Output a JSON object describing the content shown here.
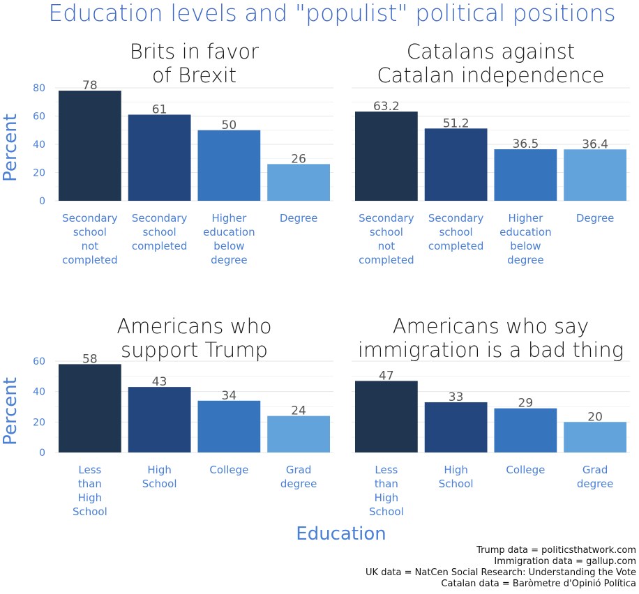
{
  "title": "Education levels and \"populist\" political positions",
  "colors": {
    "title": "#3a66c4",
    "axis_text": "#4a7fd6",
    "value_text": "#555555",
    "grid": "#e6e6e6",
    "bars": [
      "#1f3550",
      "#23467e",
      "#3674be",
      "#63a3dc"
    ]
  },
  "axis": {
    "ylabel": "Percent",
    "xlabel": "Education"
  },
  "chart_data": [
    {
      "type": "bar",
      "title": [
        "Brits in favor",
        "of Brexit"
      ],
      "categories": [
        [
          "Secondary",
          "school",
          "not",
          "completed"
        ],
        [
          "Secondary",
          "school",
          "completed"
        ],
        [
          "Higher",
          "education",
          "below",
          "degree"
        ],
        [
          "Degree"
        ]
      ],
      "values": [
        78,
        61,
        50,
        26
      ],
      "value_labels": [
        "78",
        "61",
        "50",
        "26"
      ],
      "ylim": [
        0,
        80
      ],
      "yticks": [
        0,
        20,
        40,
        60,
        80
      ],
      "ylabel": "Percent"
    },
    {
      "type": "bar",
      "title": [
        "Catalans against",
        "Catalan independence"
      ],
      "categories": [
        [
          "Secondary",
          "school",
          "not",
          "completed"
        ],
        [
          "Secondary",
          "school",
          "completed"
        ],
        [
          "Higher",
          "education",
          "below",
          "degree"
        ],
        [
          "Degree"
        ]
      ],
      "values": [
        63.2,
        51.2,
        36.5,
        36.4
      ],
      "value_labels": [
        "63.2",
        "51.2",
        "36.5",
        "36.4"
      ],
      "ylim": [
        0,
        80
      ],
      "yticks": [
        0,
        20,
        40,
        60,
        80
      ],
      "ylabel": "Percent"
    },
    {
      "type": "bar",
      "title": [
        "Americans who",
        "support Trump"
      ],
      "categories": [
        [
          "Less",
          "than",
          "High",
          "School"
        ],
        [
          "High",
          "School"
        ],
        [
          "College"
        ],
        [
          "Grad",
          "degree"
        ]
      ],
      "values": [
        58,
        43,
        34,
        24
      ],
      "value_labels": [
        "58",
        "43",
        "34",
        "24"
      ],
      "ylim": [
        0,
        60
      ],
      "yticks": [
        0,
        20,
        40,
        60
      ],
      "ylabel": "Percent",
      "xlabel": "Education"
    },
    {
      "type": "bar",
      "title": [
        "Americans who say",
        "immigration is a bad thing"
      ],
      "categories": [
        [
          "Less",
          "than",
          "High",
          "School"
        ],
        [
          "High",
          "School"
        ],
        [
          "College"
        ],
        [
          "Grad",
          "degree"
        ]
      ],
      "values": [
        47,
        33,
        29,
        20
      ],
      "value_labels": [
        "47",
        "33",
        "29",
        "20"
      ],
      "ylim": [
        0,
        60
      ],
      "yticks": [
        0,
        20,
        40,
        60
      ],
      "ylabel": "Percent",
      "xlabel": "Education"
    }
  ],
  "caption": [
    "Trump data = politicsthatwork.com",
    "Immigration data = gallup.com",
    "UK data = NatCen Social Research: Understanding the Vote",
    "Catalan data = Baròmetre d'Opinió Política"
  ]
}
